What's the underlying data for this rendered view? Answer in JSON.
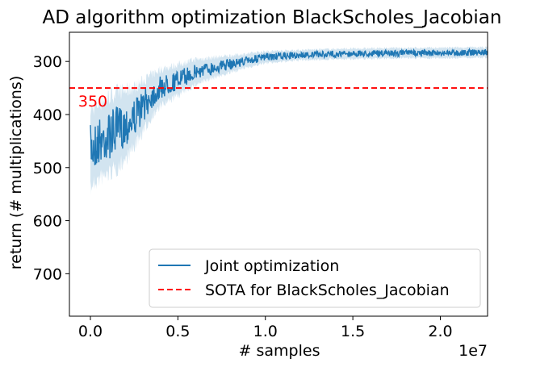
{
  "chart_data": {
    "type": "line",
    "title": "AD algorithm optimization BlackScholes_Jacobian",
    "xlabel": "# samples",
    "ylabel": "return (# multiplications)",
    "x_offset_label": "1e7",
    "xlim": [
      -0.12,
      2.27
    ],
    "ylim": [
      780,
      245
    ],
    "y_inverted": true,
    "x_ticks": [
      0.0,
      0.5,
      1.0,
      1.5,
      2.0
    ],
    "x_tick_labels": [
      "0.0",
      "0.5",
      "1.0",
      "1.5",
      "2.0"
    ],
    "y_ticks": [
      300,
      400,
      500,
      600,
      700
    ],
    "y_tick_labels": [
      "300",
      "400",
      "500",
      "600",
      "700"
    ],
    "grid": false,
    "legend_position": "lower right",
    "series": [
      {
        "name": "Joint optimization",
        "color": "#1f77b4",
        "style": "solid",
        "x": [
          0.0,
          0.05,
          0.1,
          0.15,
          0.2,
          0.25,
          0.3,
          0.35,
          0.4,
          0.5,
          0.6,
          0.7,
          0.8,
          0.9,
          1.0,
          1.2,
          1.4,
          1.6,
          1.8,
          2.0,
          2.2,
          2.27
        ],
        "y": [
          465,
          450,
          440,
          430,
          420,
          405,
          385,
          365,
          350,
          335,
          320,
          312,
          305,
          298,
          292,
          288,
          286,
          285,
          284,
          284,
          283,
          283
        ],
        "noise": [
          45,
          45,
          45,
          45,
          40,
          35,
          30,
          25,
          22,
          18,
          15,
          12,
          10,
          8,
          7,
          6,
          6,
          6,
          6,
          6,
          6,
          6
        ]
      },
      {
        "name": "SOTA for BlackScholes_Jacobian",
        "color": "#ff0000",
        "style": "dashed",
        "y_constant": 350
      }
    ],
    "annotations": [
      {
        "text": "350",
        "color": "#ff0000"
      }
    ]
  }
}
